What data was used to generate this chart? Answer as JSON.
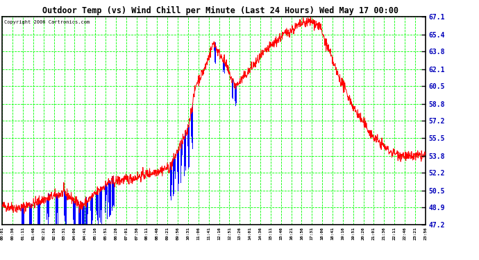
{
  "title": "Outdoor Temp (vs) Wind Chill per Minute (Last 24 Hours) Wed May 17 00:00",
  "copyright": "Copyright 2006 Cartronics.com",
  "ymin": 47.2,
  "ymax": 67.1,
  "yticks": [
    47.2,
    48.9,
    50.5,
    52.2,
    53.8,
    55.5,
    57.2,
    58.8,
    60.5,
    62.1,
    63.8,
    65.4,
    67.1
  ],
  "xtick_labels": [
    "00:01",
    "00:36",
    "01:11",
    "01:46",
    "02:21",
    "02:56",
    "03:31",
    "04:06",
    "04:41",
    "05:16",
    "05:51",
    "06:26",
    "07:01",
    "07:36",
    "08:11",
    "08:46",
    "09:21",
    "09:56",
    "10:31",
    "11:06",
    "11:41",
    "12:16",
    "12:51",
    "13:26",
    "14:01",
    "14:36",
    "15:11",
    "15:46",
    "16:21",
    "16:56",
    "17:31",
    "18:06",
    "18:41",
    "19:16",
    "19:51",
    "20:26",
    "21:01",
    "21:36",
    "22:11",
    "22:46",
    "23:21",
    "23:56"
  ],
  "bg_color": "#ffffff",
  "plot_bg": "#ffffff",
  "grid_color": "#00ff00",
  "title_color": "#000000",
  "red_line_color": "#ff0000",
  "blue_bar_color": "#0000ff",
  "border_color": "#000000"
}
